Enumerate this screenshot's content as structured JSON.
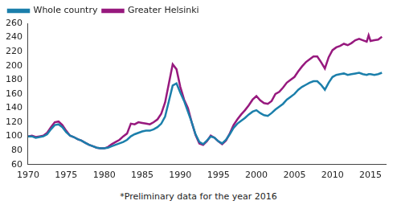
{
  "chart_data": {
    "type": "line",
    "annotation": "*Preliminary data for the year 2016",
    "x": [
      1970,
      1970.5,
      1971,
      1971.5,
      1972,
      1972.5,
      1973,
      1973.5,
      1974,
      1974.5,
      1975,
      1975.5,
      1976,
      1976.5,
      1977,
      1977.5,
      1978,
      1978.5,
      1979,
      1979.5,
      1980,
      1980.5,
      1981,
      1981.5,
      1982,
      1982.5,
      1983,
      1983.5,
      1984,
      1984.5,
      1985,
      1985.5,
      1986,
      1986.5,
      1987,
      1987.5,
      1988,
      1988.5,
      1989,
      1989.5,
      1990,
      1990.5,
      1991,
      1991.5,
      1992,
      1992.5,
      1993,
      1993.5,
      1994,
      1994.5,
      1995,
      1995.5,
      1996,
      1996.5,
      1997,
      1997.5,
      1998,
      1998.5,
      1999,
      1999.5,
      2000,
      2000.5,
      2001,
      2001.5,
      2002,
      2002.5,
      2003,
      2003.5,
      2004,
      2004.5,
      2005,
      2005.5,
      2006,
      2006.5,
      2007,
      2007.5,
      2008,
      2008.5,
      2009,
      2009.5,
      2010,
      2010.5,
      2011,
      2011.5,
      2012,
      2012.5,
      2013,
      2013.5,
      2014,
      2014.5,
      2014.75,
      2015,
      2015.5,
      2016,
      2016.5
    ],
    "series": [
      {
        "name": "Whole country",
        "color": "#1b7fab",
        "values": [
          100,
          100,
          98,
          99,
          100,
          103,
          110,
          116,
          117,
          113,
          106,
          101,
          99,
          96,
          94,
          91,
          88,
          86,
          84,
          83,
          83,
          84,
          86,
          88,
          90,
          92,
          95,
          100,
          103,
          105,
          107,
          108,
          108,
          110,
          113,
          118,
          128,
          150,
          172,
          175,
          162,
          150,
          135,
          120,
          103,
          92,
          89,
          94,
          100,
          98,
          93,
          90,
          95,
          103,
          112,
          118,
          122,
          126,
          131,
          135,
          137,
          133,
          130,
          129,
          133,
          138,
          142,
          146,
          152,
          156,
          160,
          166,
          170,
          173,
          176,
          178,
          178,
          173,
          166,
          176,
          184,
          187,
          188,
          189,
          187,
          188,
          189,
          190,
          188,
          187,
          188,
          188,
          187,
          188,
          190
        ]
      },
      {
        "name": "Greater Helsinki",
        "color": "#97197e",
        "values": [
          100,
          101,
          99,
          100,
          101,
          105,
          113,
          120,
          121,
          116,
          108,
          101,
          99,
          96,
          94,
          91,
          88,
          86,
          84,
          83,
          83,
          85,
          89,
          92,
          95,
          100,
          104,
          118,
          117,
          120,
          119,
          118,
          117,
          120,
          124,
          132,
          148,
          175,
          202,
          195,
          170,
          152,
          140,
          120,
          102,
          90,
          88,
          93,
          101,
          98,
          93,
          89,
          94,
          104,
          116,
          124,
          131,
          137,
          144,
          152,
          157,
          151,
          147,
          146,
          150,
          160,
          163,
          169,
          176,
          180,
          184,
          192,
          199,
          205,
          209,
          213,
          213,
          205,
          196,
          212,
          222,
          226,
          228,
          231,
          229,
          232,
          236,
          238,
          236,
          234,
          243,
          235,
          236,
          237,
          241
        ]
      }
    ],
    "xlim": [
      1970,
      2017
    ],
    "xticks": [
      1970,
      1975,
      1980,
      1985,
      1990,
      1995,
      2000,
      2005,
      2010,
      2015
    ],
    "ylim": [
      60,
      260
    ],
    "yticks": [
      60,
      80,
      100,
      120,
      140,
      160,
      180,
      200,
      220,
      240,
      260
    ],
    "grid": false,
    "legend": "upper left"
  }
}
